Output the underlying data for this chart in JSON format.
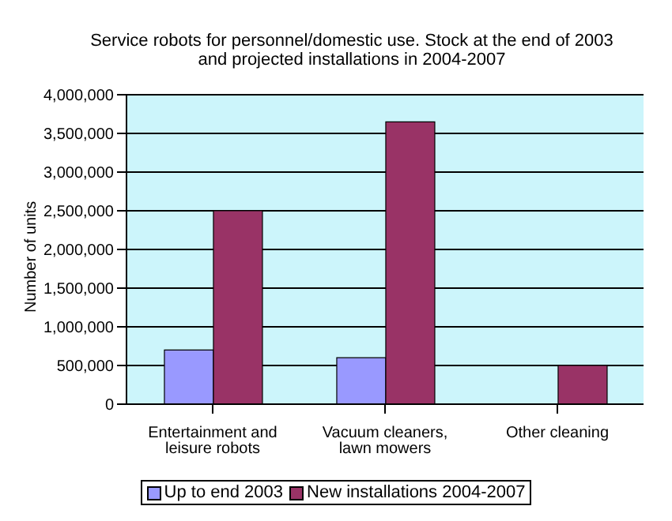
{
  "chart_data": {
    "type": "bar",
    "title": "Service robots for personnel/domestic use.  Stock at the end of 2003\nand projected installations in 2004-2007",
    "ylabel": "Number of units",
    "categories": [
      "Entertainment and leisure robots",
      "Vacuum cleaners, lawn mowers",
      "Other cleaning"
    ],
    "series": [
      {
        "name": "Up to end 2003",
        "color": "#9999ff",
        "values": [
          700000,
          600000,
          null
        ]
      },
      {
        "name": "New installations 2004-2007",
        "color": "#993366",
        "values": [
          2500000,
          3650000,
          500000
        ]
      }
    ],
    "ylim": [
      0,
      4000000
    ],
    "yticks": [
      0,
      {
        "value": 500000,
        "label": "500,000"
      },
      {
        "value": 1000000,
        "label": "1,000,000"
      },
      {
        "value": 1500000,
        "label": "1,500,000"
      },
      {
        "value": 2000000,
        "label": "2,000,000"
      },
      {
        "value": 2500000,
        "label": "2,500,000"
      },
      {
        "value": 3000000,
        "label": "3,000,000"
      },
      {
        "value": 3500000,
        "label": "3,500,000"
      },
      {
        "value": 4000000,
        "label": "4,000,000"
      }
    ],
    "grid": "y",
    "legend": "bottom"
  }
}
